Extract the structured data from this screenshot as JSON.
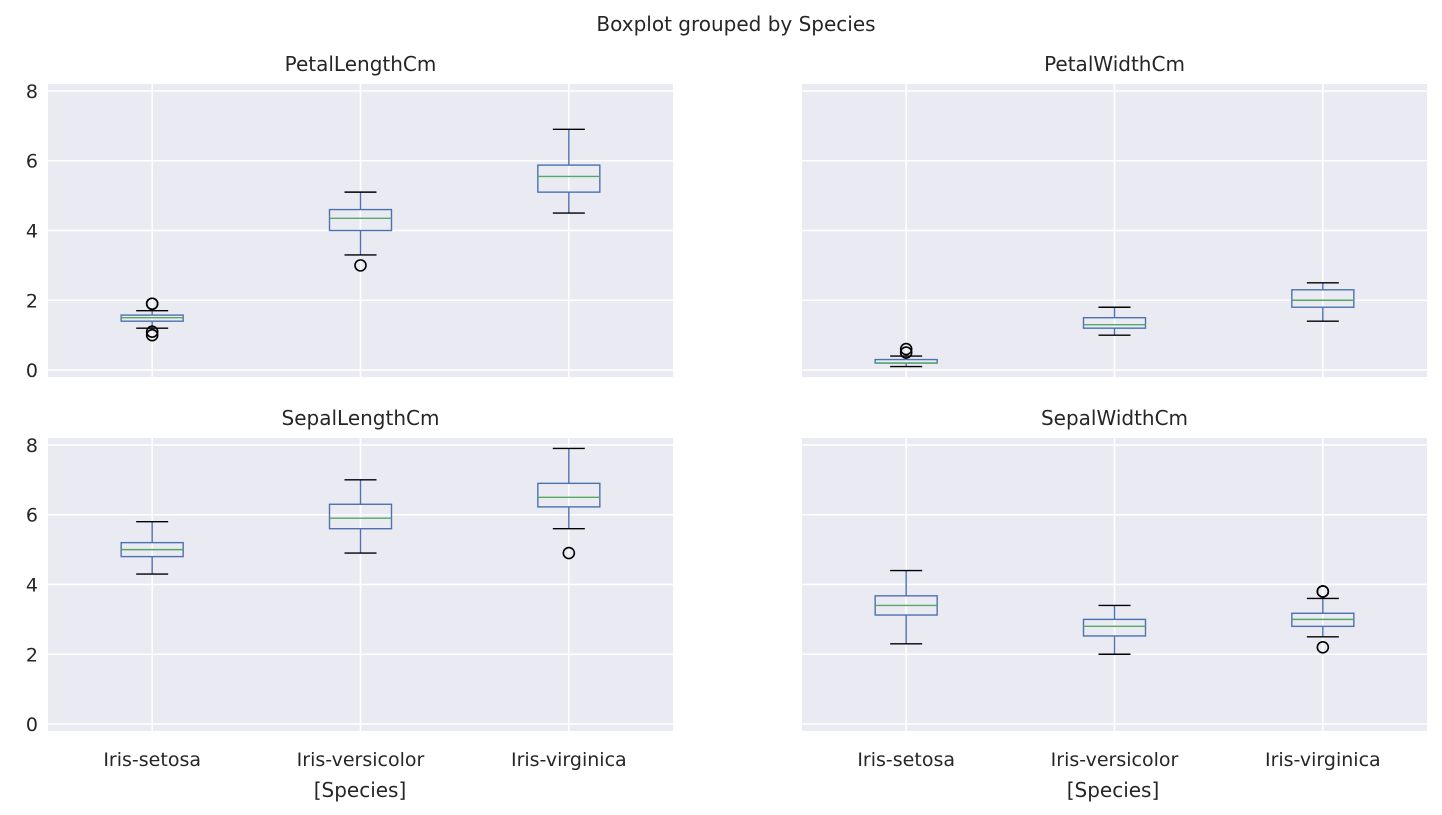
{
  "chart_data": {
    "type": "box",
    "suptitle": "Boxplot grouped by Species",
    "xlabel": "[Species]",
    "categories": [
      "Iris-setosa",
      "Iris-versicolor",
      "Iris-virginica"
    ],
    "ylim": [
      -0.2,
      8.2
    ],
    "yticks": [
      0,
      2,
      4,
      6,
      8
    ],
    "sharey": true,
    "sharex": true,
    "grid": true,
    "colors": {
      "box": "#4c72b0",
      "median": "#55a868",
      "whisker": "#4c72b0",
      "cap": "#000000",
      "flier": "#000000",
      "background": "#eaeaf2",
      "grid": "#ffffff"
    },
    "panels": [
      {
        "title": "PetalLengthCm",
        "boxes": [
          {
            "category": "Iris-setosa",
            "whislo": 1.2,
            "q1": 1.4,
            "med": 1.5,
            "q3": 1.575,
            "whishi": 1.7,
            "fliers": [
              1.0,
              1.1,
              1.9,
              1.9
            ]
          },
          {
            "category": "Iris-versicolor",
            "whislo": 3.3,
            "q1": 4.0,
            "med": 4.35,
            "q3": 4.6,
            "whishi": 5.1,
            "fliers": [
              3.0
            ]
          },
          {
            "category": "Iris-virginica",
            "whislo": 4.5,
            "q1": 5.1,
            "med": 5.55,
            "q3": 5.875,
            "whishi": 6.9,
            "fliers": []
          }
        ]
      },
      {
        "title": "PetalWidthCm",
        "boxes": [
          {
            "category": "Iris-setosa",
            "whislo": 0.1,
            "q1": 0.2,
            "med": 0.2,
            "q3": 0.3,
            "whishi": 0.4,
            "fliers": [
              0.5,
              0.6
            ]
          },
          {
            "category": "Iris-versicolor",
            "whislo": 1.0,
            "q1": 1.2,
            "med": 1.3,
            "q3": 1.5,
            "whishi": 1.8,
            "fliers": []
          },
          {
            "category": "Iris-virginica",
            "whislo": 1.4,
            "q1": 1.8,
            "med": 2.0,
            "q3": 2.3,
            "whishi": 2.5,
            "fliers": []
          }
        ]
      },
      {
        "title": "SepalLengthCm",
        "boxes": [
          {
            "category": "Iris-setosa",
            "whislo": 4.3,
            "q1": 4.8,
            "med": 5.0,
            "q3": 5.2,
            "whishi": 5.8,
            "fliers": []
          },
          {
            "category": "Iris-versicolor",
            "whislo": 4.9,
            "q1": 5.6,
            "med": 5.9,
            "q3": 6.3,
            "whishi": 7.0,
            "fliers": []
          },
          {
            "category": "Iris-virginica",
            "whislo": 5.6,
            "q1": 6.225,
            "med": 6.5,
            "q3": 6.9,
            "whishi": 7.9,
            "fliers": [
              4.9
            ]
          }
        ]
      },
      {
        "title": "SepalWidthCm",
        "boxes": [
          {
            "category": "Iris-setosa",
            "whislo": 2.3,
            "q1": 3.125,
            "med": 3.4,
            "q3": 3.675,
            "whishi": 4.4,
            "fliers": []
          },
          {
            "category": "Iris-versicolor",
            "whislo": 2.0,
            "q1": 2.525,
            "med": 2.8,
            "q3": 3.0,
            "whishi": 3.4,
            "fliers": []
          },
          {
            "category": "Iris-virginica",
            "whislo": 2.5,
            "q1": 2.8,
            "med": 3.0,
            "q3": 3.175,
            "whishi": 3.6,
            "fliers": [
              2.2,
              3.8,
              3.8
            ]
          }
        ]
      }
    ]
  }
}
